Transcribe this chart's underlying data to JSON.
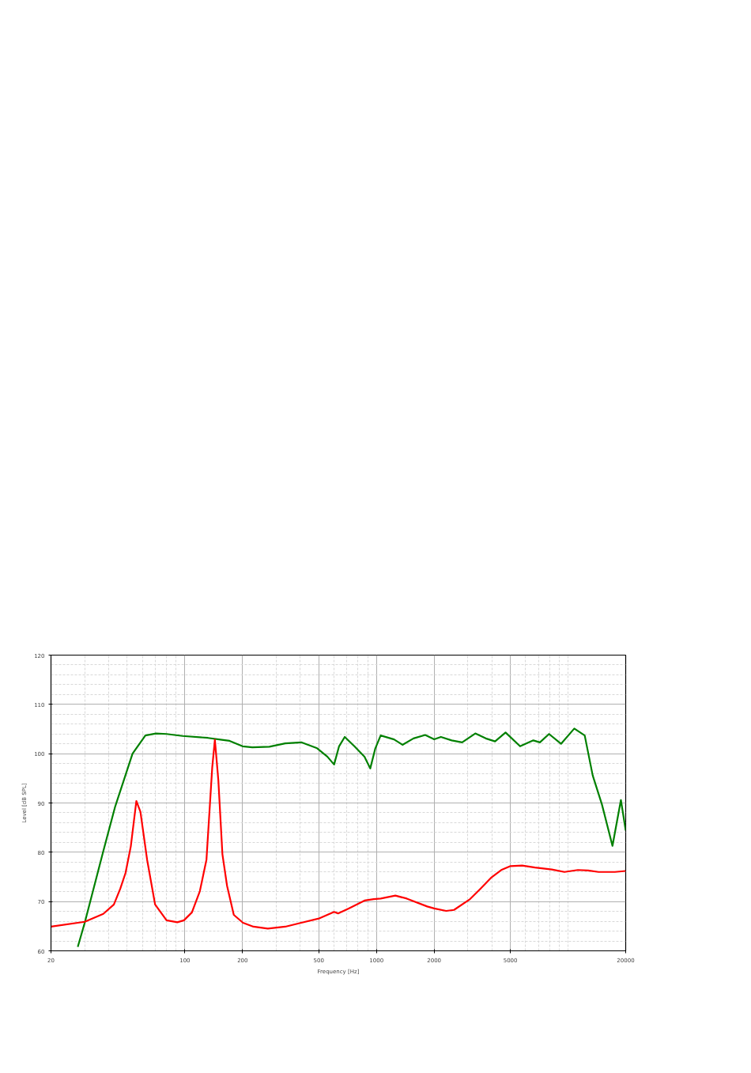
{
  "chart_data": {
    "type": "line",
    "xlabel": "Frequency [Hz]",
    "ylabel": "Level [dB SPL]",
    "log": "x",
    "grid": true,
    "line_style": "solid",
    "marker": "none",
    "xlim": [
      20,
      20000
    ],
    "xticks": [
      20,
      100,
      200,
      500,
      1000,
      2000,
      5000,
      20000
    ],
    "ylim": [
      60,
      120
    ],
    "yticks": [
      60,
      70,
      80,
      90,
      100,
      110,
      120
    ],
    "series": [
      {
        "color": "#008000",
        "x": [
          27.6,
          30,
          37.5,
          43.2,
          53.3,
          62.2,
          70.6,
          80.2,
          97.2,
          132,
          156,
          171,
          200,
          225,
          276,
          334,
          405,
          490,
          554,
          601,
          638,
          683,
          767,
          866,
          928,
          985,
          1052,
          1235,
          1367,
          1560,
          1797,
          2001,
          2170,
          2470,
          2800,
          3280,
          3720,
          4160,
          4720,
          5620,
          6590,
          7130,
          7960,
          9190,
          10780,
          12220,
          13450,
          15030,
          17060,
          18880,
          20000
        ],
        "values": [
          60.8,
          65.7,
          80.2,
          89.2,
          100,
          103.7,
          104.1,
          104.0,
          103.6,
          103.2,
          102.8,
          102.6,
          101.5,
          101.3,
          101.4,
          102.1,
          102.3,
          101.1,
          99.4,
          97.8,
          101.5,
          103.4,
          101.5,
          99.4,
          97.0,
          101.0,
          103.7,
          102.9,
          101.8,
          103.1,
          103.8,
          102.9,
          103.4,
          102.7,
          102.3,
          104.1,
          103.1,
          102.5,
          104.3,
          101.5,
          102.7,
          102.3,
          104.0,
          102.0,
          105.1,
          103.7,
          95.6,
          89.7,
          81.3,
          90.6,
          84.4
        ]
      },
      {
        "color": "#ff0000",
        "x": [
          20,
          30,
          37.5,
          42.6,
          46,
          49,
          52.2,
          55.8,
          58.6,
          63.5,
          69.9,
          80.2,
          91.3,
          98.9,
          108.8,
          119.7,
          129.6,
          138.9,
          143.4,
          149.5,
          157,
          166,
          180,
          201,
          228,
          271,
          334,
          405,
          505,
          601,
          630,
          716,
          866,
          967,
          1052,
          1255,
          1440,
          1840,
          2001,
          2310,
          2540,
          3080,
          3490,
          3960,
          4480,
          5010,
          5760,
          6720,
          8230,
          9580,
          11260,
          12740,
          14430,
          17560,
          20000
        ],
        "values": [
          64.9,
          65.9,
          67.5,
          69.4,
          72.6,
          75.8,
          81.2,
          90.4,
          88.2,
          78.5,
          69.4,
          66.2,
          65.8,
          66.2,
          67.8,
          72.1,
          78.5,
          97.2,
          102.8,
          94.6,
          79.6,
          73.2,
          67.3,
          65.7,
          64.9,
          64.5,
          64.9,
          65.7,
          66.6,
          67.9,
          67.6,
          68.6,
          70.2,
          70.5,
          70.6,
          71.2,
          70.6,
          69.0,
          68.6,
          68.1,
          68.3,
          70.5,
          72.6,
          74.8,
          76.4,
          77.2,
          77.3,
          76.9,
          76.5,
          76.0,
          76.4,
          76.3,
          76.0,
          76.0,
          76.2
        ]
      }
    ]
  }
}
